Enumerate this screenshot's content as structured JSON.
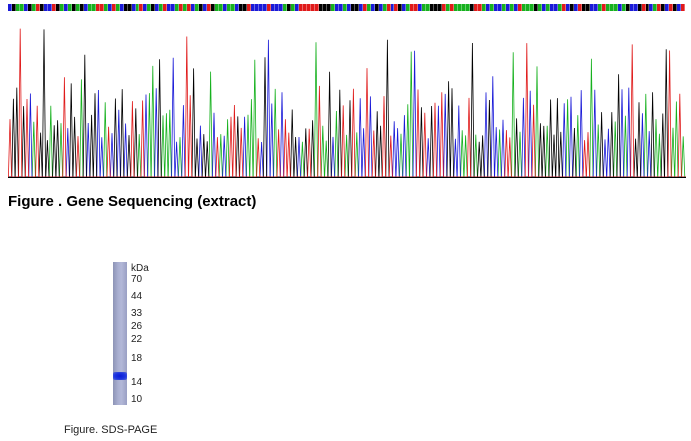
{
  "sequencing": {
    "caption": "Figure . Gene Sequencing (extract)",
    "trace_colors": {
      "A": "#16b11e",
      "C": "#1a1ad8",
      "G": "#000000",
      "T": "#e01a1a"
    }
  },
  "sds_page": {
    "caption": "Figure. SDS-PAGE",
    "unit_label": "kDa",
    "markers": [
      "70",
      "44",
      "33",
      "26",
      "22",
      "18",
      "14",
      "10"
    ],
    "lane_color": "#a8aed0",
    "band_color": "#1a2ee0"
  }
}
